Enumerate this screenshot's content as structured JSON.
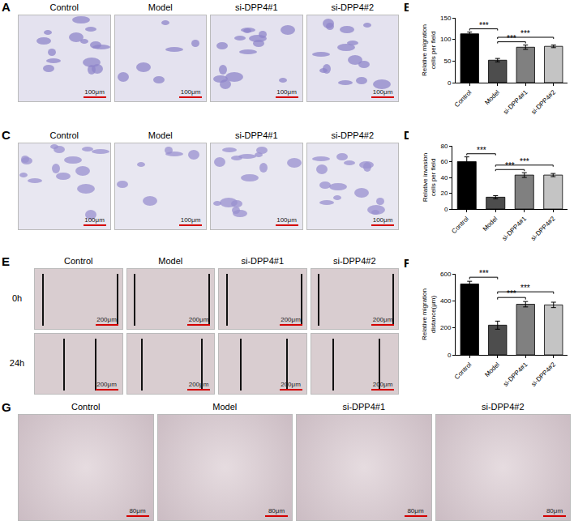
{
  "image_panels": [
    {
      "panel": "A",
      "labels": [
        "Control",
        "Model",
        "si-DPP4#1",
        "si-DPP4#2"
      ],
      "scale_bar": "100μm"
    },
    {
      "panel": "C",
      "labels": [
        "Control",
        "Model",
        "si-DPP4#1",
        "si-DPP4#2"
      ],
      "scale_bar": "100μm"
    },
    {
      "panel": "E",
      "labels": [
        "Control",
        "Model",
        "si-DPP4#1",
        "si-DPP4#2"
      ],
      "rows": [
        "0h",
        "24h"
      ],
      "scale_bar": "200μm"
    },
    {
      "panel": "G",
      "labels": [
        "Control",
        "Model",
        "si-DPP4#1",
        "si-DPP4#2"
      ],
      "scale_bar": "80μm"
    }
  ],
  "chart_data": [
    {
      "panel": "B",
      "type": "bar",
      "categories": [
        "Control",
        "Model",
        "si-DPP4#1",
        "si-DPP4#2"
      ],
      "values": [
        113,
        52,
        82,
        84
      ],
      "errors": [
        4,
        4,
        5,
        3
      ],
      "colors": [
        "#000000",
        "#4d4d4d",
        "#808080",
        "#c4c4c4"
      ],
      "ylabel": "Relative migration cells per field",
      "ylim": [
        0,
        150
      ],
      "yticks": [
        0,
        50,
        100,
        150
      ],
      "comparisons": [
        {
          "categories": [
            "Control",
            "Model"
          ],
          "text": "***"
        },
        {
          "categories": [
            "Model",
            "si-DPP4#1"
          ],
          "text": "***"
        },
        {
          "categories": [
            "Model",
            "si-DPP4#2"
          ],
          "text": "***"
        }
      ]
    },
    {
      "panel": "D",
      "type": "bar",
      "categories": [
        "Control",
        "Model",
        "si-DPP4#1",
        "si-DPP4#2"
      ],
      "values": [
        60,
        15,
        43,
        43
      ],
      "errors": [
        6,
        2,
        3,
        2
      ],
      "colors": [
        "#000000",
        "#4d4d4d",
        "#808080",
        "#c4c4c4"
      ],
      "ylabel": "Relative invasion cells per field",
      "ylim": [
        0,
        80
      ],
      "yticks": [
        0,
        20,
        40,
        60,
        80
      ],
      "comparisons": [
        {
          "categories": [
            "Control",
            "Model"
          ],
          "text": "***"
        },
        {
          "categories": [
            "Model",
            "si-DPP4#1"
          ],
          "text": "***"
        },
        {
          "categories": [
            "Model",
            "si-DPP4#2"
          ],
          "text": "***"
        }
      ]
    },
    {
      "panel": "F",
      "type": "bar",
      "categories": [
        "Control",
        "Model",
        "si-DPP4#1",
        "si-DPP4#2"
      ],
      "values": [
        525,
        220,
        375,
        370
      ],
      "errors": [
        20,
        30,
        20,
        20
      ],
      "colors": [
        "#000000",
        "#4d4d4d",
        "#808080",
        "#c4c4c4"
      ],
      "ylabel": "Relative migration distance(μm)",
      "ylim": [
        0,
        600
      ],
      "yticks": [
        0,
        200,
        400,
        600
      ],
      "comparisons": [
        {
          "categories": [
            "Control",
            "Model"
          ],
          "text": "***"
        },
        {
          "categories": [
            "Model",
            "si-DPP4#1"
          ],
          "text": "***"
        },
        {
          "categories": [
            "Model",
            "si-DPP4#2"
          ],
          "text": "***"
        }
      ]
    }
  ]
}
